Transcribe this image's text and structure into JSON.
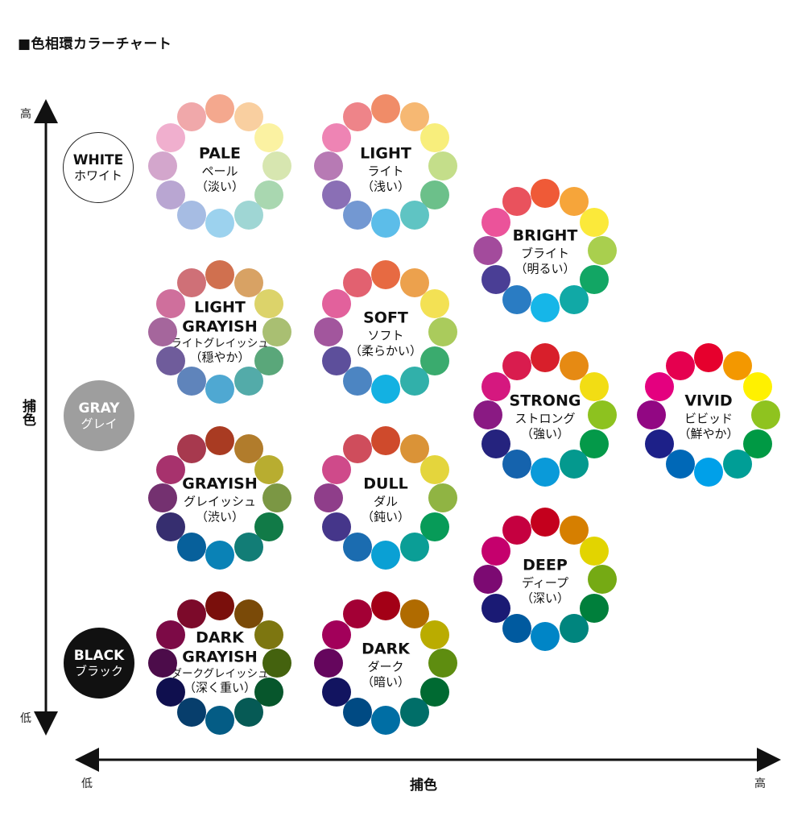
{
  "title": "■色相環カラーチャート",
  "axes": {
    "vertical": {
      "name": "捕色",
      "high": "高",
      "low": "低"
    },
    "horizontal": {
      "name": "捕色",
      "low": "低",
      "high": "高"
    }
  },
  "anchors": [
    {
      "id": "white",
      "en": "WHITE",
      "jp": "ホワイト",
      "bg": "#ffffff",
      "fg": "#111111",
      "border": "#222222"
    },
    {
      "id": "gray",
      "en": "GRAY",
      "jp": "グレイ",
      "bg": "#9e9e9e",
      "fg": "#ffffff",
      "border": "#9e9e9e"
    },
    {
      "id": "black",
      "en": "BLACK",
      "jp": "ブラック",
      "bg": "#111111",
      "fg": "#ffffff",
      "border": "#111111"
    }
  ],
  "tones": [
    {
      "id": "pale",
      "lines": [
        "PALE"
      ],
      "jp": "ペール",
      "jp2": "（淡い）",
      "colors": [
        "#f4a88e",
        "#f9cfa0",
        "#fbf2a2",
        "#d7e6b0",
        "#a9d7b0",
        "#9fd6d4",
        "#9cd2ee",
        "#a6bce3",
        "#b9a6d2",
        "#d3a6cc",
        "#f0afce",
        "#f0a8aa"
      ]
    },
    {
      "id": "light",
      "lines": [
        "LIGHT"
      ],
      "jp": "ライト",
      "jp2": "（浅い）",
      "colors": [
        "#f08c68",
        "#f6b873",
        "#f8ee7c",
        "#c4de8a",
        "#6cc08a",
        "#5fc4c3",
        "#5cbde9",
        "#7398d2",
        "#8a6fb5",
        "#b77ab4",
        "#ee84b4",
        "#ee8489"
      ]
    },
    {
      "id": "bright",
      "lines": [
        "BRIGHT"
      ],
      "jp": "ブライト",
      "jp2": "（明るい）",
      "colors": [
        "#ef5a37",
        "#f6a53a",
        "#fbe93a",
        "#a9cf4e",
        "#12a664",
        "#11a9a6",
        "#16b6e8",
        "#2a7cc3",
        "#4a3e95",
        "#a34b9c",
        "#eb539a",
        "#e9525d"
      ]
    },
    {
      "id": "light-grayish",
      "lines": [
        "LIGHT",
        "GRAYISH"
      ],
      "jp": "ライトグレイッシュ",
      "jp2": "（穏やか）",
      "small": true,
      "colors": [
        "#d0704f",
        "#d8a264",
        "#dcd36a",
        "#a9bf72",
        "#5aa77a",
        "#53aba9",
        "#4fa8d2",
        "#5f84bb",
        "#6f5c9b",
        "#a5669c",
        "#cf6f9c",
        "#cf7077"
      ]
    },
    {
      "id": "soft",
      "lines": [
        "SOFT"
      ],
      "jp": "ソフト",
      "jp2": "（柔らかい）",
      "colors": [
        "#e76a42",
        "#eca14d",
        "#f3e154",
        "#aacb5c",
        "#3aab6e",
        "#31b0aa",
        "#13b1e2",
        "#4c85c2",
        "#5d4f9b",
        "#a2569d",
        "#e2619c",
        "#e26170"
      ]
    },
    {
      "id": "strong",
      "lines": [
        "STRONG"
      ],
      "jp": "ストロング",
      "jp2": "（強い）",
      "colors": [
        "#d81f2b",
        "#e68a13",
        "#f2dd14",
        "#8dc21f",
        "#049949",
        "#04998e",
        "#0a9ad9",
        "#1563ad",
        "#25237e",
        "#8a1a83",
        "#d5187f",
        "#d91c4e"
      ]
    },
    {
      "id": "vivid",
      "lines": [
        "VIVID"
      ],
      "jp": "ビビッド",
      "jp2": "（鮮やか）",
      "colors": [
        "#e6002d",
        "#f39800",
        "#fff100",
        "#8fc31f",
        "#009944",
        "#009e96",
        "#00a0e9",
        "#0068b7",
        "#1d2088",
        "#920783",
        "#e4007f",
        "#e5004f"
      ]
    },
    {
      "id": "grayish",
      "lines": [
        "GRAYISH"
      ],
      "jp": "グレイッシュ",
      "jp2": "（渋い）",
      "colors": [
        "#a93b22",
        "#b17c2c",
        "#b8ad30",
        "#7b9744",
        "#117a47",
        "#127d76",
        "#0a82b6",
        "#07609b",
        "#362e6f",
        "#743170",
        "#a7326d",
        "#a7394e"
      ]
    },
    {
      "id": "dull",
      "lines": [
        "DULL"
      ],
      "jp": "ダル",
      "jp2": "（鈍い）",
      "colors": [
        "#cf4a2c",
        "#da9337",
        "#e4d53c",
        "#90b443",
        "#079b58",
        "#0b9e96",
        "#0aa0d4",
        "#1b6cb0",
        "#45368a",
        "#8f3e8a",
        "#cf4a8a",
        "#cf4d5c"
      ]
    },
    {
      "id": "deep",
      "lines": [
        "DEEP"
      ],
      "jp": "ディープ",
      "jp2": "（深い）",
      "colors": [
        "#c4001d",
        "#d67f00",
        "#e2d400",
        "#75aa14",
        "#007f3b",
        "#00857e",
        "#0085c6",
        "#005a9f",
        "#1a1a74",
        "#7c0a72",
        "#c5006d",
        "#c50040"
      ]
    },
    {
      "id": "dark-grayish",
      "lines": [
        "DARK",
        "GRAYISH"
      ],
      "jp": "ダークグレイッシュ",
      "jp2": "（深く重い）",
      "small": true,
      "colors": [
        "#7a0f0c",
        "#7a4a08",
        "#7d7610",
        "#44620e",
        "#07562c",
        "#065a55",
        "#045c85",
        "#073e6c",
        "#0f0f4e",
        "#4c0c4a",
        "#7c0a46",
        "#7c0a2a"
      ]
    },
    {
      "id": "dark",
      "lines": [
        "DARK"
      ],
      "jp": "ダーク",
      "jp2": "（暗い）",
      "colors": [
        "#a30016",
        "#b06b00",
        "#baac00",
        "#5e8d10",
        "#006a32",
        "#006e68",
        "#006ea4",
        "#004a83",
        "#121460",
        "#65065d",
        "#a2005a",
        "#a30035"
      ]
    }
  ]
}
